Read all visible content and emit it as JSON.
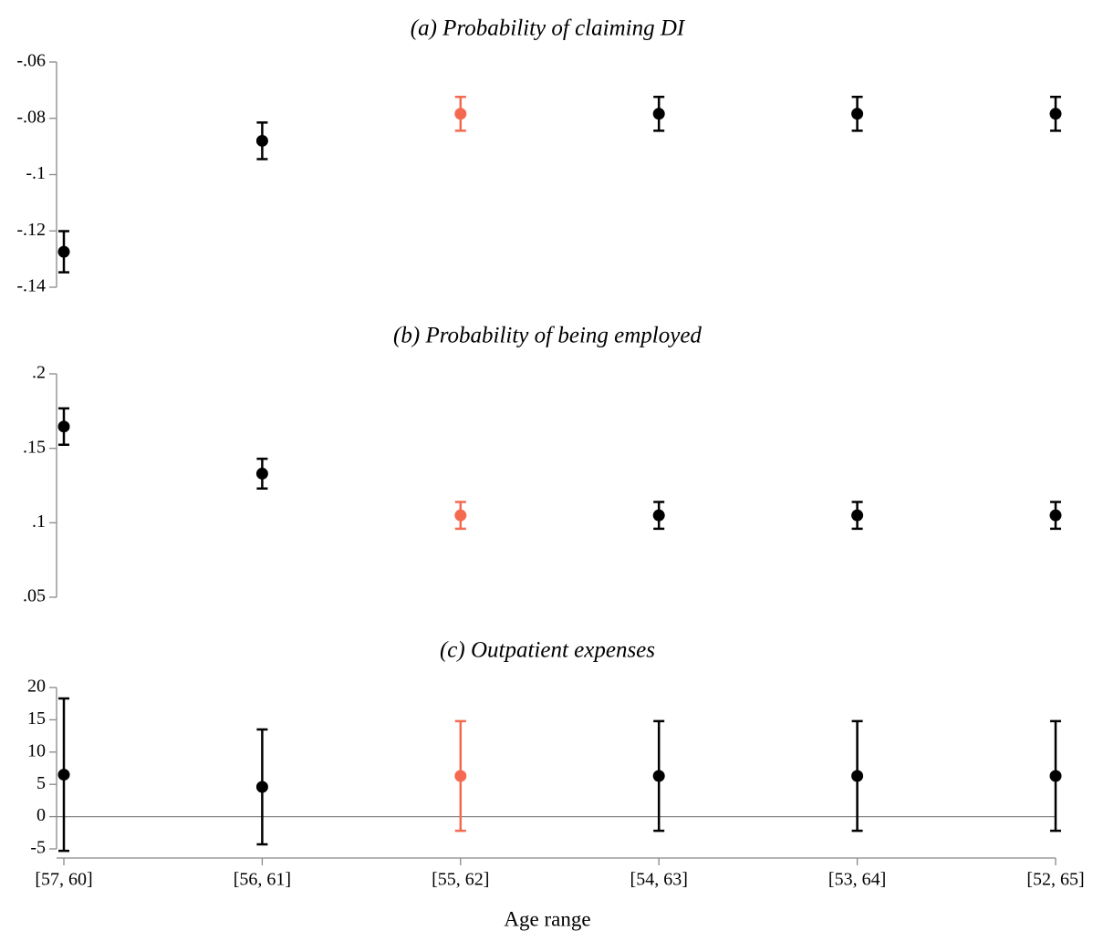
{
  "chart_data": [
    {
      "type": "errorbar",
      "title": "(a) Probability of claiming DI",
      "categories": [
        "[57, 60]",
        "[56, 61]",
        "[55, 62]",
        "[54, 63]",
        "[53, 64]",
        "[52, 65]"
      ],
      "values": [
        -0.1274,
        -0.088,
        -0.0784,
        -0.0784,
        -0.0784,
        -0.0784
      ],
      "errors": [
        0.0073,
        0.0065,
        0.006,
        0.006,
        0.006,
        0.006
      ],
      "colors": [
        "#000000",
        "#000000",
        "#f4694f",
        "#000000",
        "#000000",
        "#000000"
      ],
      "ylim": [
        -0.14,
        -0.06
      ],
      "yticks": [
        {
          "value": -0.14,
          "label": "-.14"
        },
        {
          "value": -0.12,
          "label": "-.12"
        },
        {
          "value": -0.1,
          "label": "-.1"
        },
        {
          "value": -0.08,
          "label": "-.08"
        },
        {
          "value": -0.06,
          "label": "-.06"
        }
      ]
    },
    {
      "type": "errorbar",
      "title": "(b) Probability of being employed",
      "categories": [
        "[57, 60]",
        "[56, 61]",
        "[55, 62]",
        "[54, 63]",
        "[53, 64]",
        "[52, 65]"
      ],
      "values": [
        0.1646,
        0.133,
        0.105,
        0.105,
        0.105,
        0.105
      ],
      "errors": [
        0.0122,
        0.01,
        0.009,
        0.009,
        0.009,
        0.009
      ],
      "colors": [
        "#000000",
        "#000000",
        "#f4694f",
        "#000000",
        "#000000",
        "#000000"
      ],
      "ylim": [
        0.05,
        0.2
      ],
      "yticks": [
        {
          "value": 0.05,
          "label": ".05"
        },
        {
          "value": 0.1,
          "label": ".1"
        },
        {
          "value": 0.15,
          "label": ".15"
        },
        {
          "value": 0.2,
          "label": ".2"
        }
      ]
    },
    {
      "type": "errorbar",
      "title": "(c) Outpatient expenses",
      "xlabel": "Age range",
      "categories": [
        "[57, 60]",
        "[56, 61]",
        "[55, 62]",
        "[54, 63]",
        "[53, 64]",
        "[52, 65]"
      ],
      "values": [
        6.5,
        4.6,
        6.3,
        6.3,
        6.3,
        6.3
      ],
      "errors": [
        11.8,
        8.9,
        8.5,
        8.5,
        8.5,
        8.5
      ],
      "colors": [
        "#000000",
        "#000000",
        "#f4694f",
        "#000000",
        "#000000",
        "#000000"
      ],
      "ylim": [
        -5,
        20
      ],
      "yticks": [
        -5,
        0,
        5,
        10,
        15,
        20
      ],
      "zeroline": true,
      "xaxis": true
    }
  ]
}
